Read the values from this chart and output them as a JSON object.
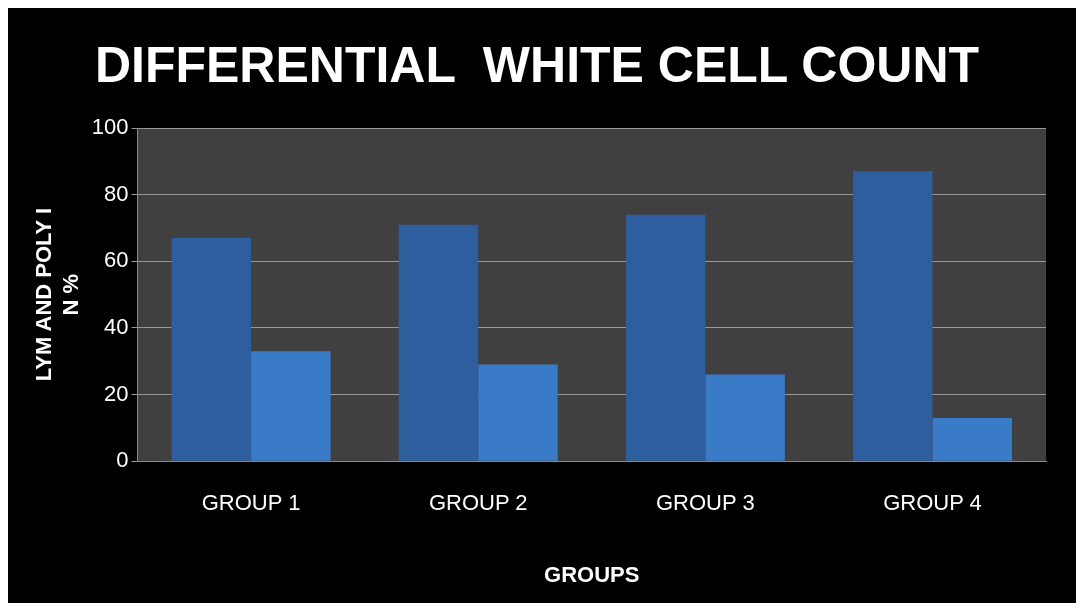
{
  "chart_data": {
    "type": "bar",
    "title": "DIFFERENTIAL  WHITE CELL COUNT",
    "xlabel": "GROUPS",
    "ylabel": "LYM AND POLY I\nN %",
    "categories": [
      "GROUP 1",
      "GROUP 2",
      "GROUP 3",
      "GROUP 4"
    ],
    "series": [
      {
        "color": "#2e5e9e",
        "values": [
          67,
          71,
          74,
          87
        ]
      },
      {
        "color": "#3a7bc8",
        "values": [
          33,
          29,
          26,
          13
        ]
      }
    ],
    "ylim": [
      0,
      100
    ],
    "yticks": [
      0,
      20,
      40,
      60,
      80,
      100
    ],
    "grid": "y",
    "legend": false
  }
}
